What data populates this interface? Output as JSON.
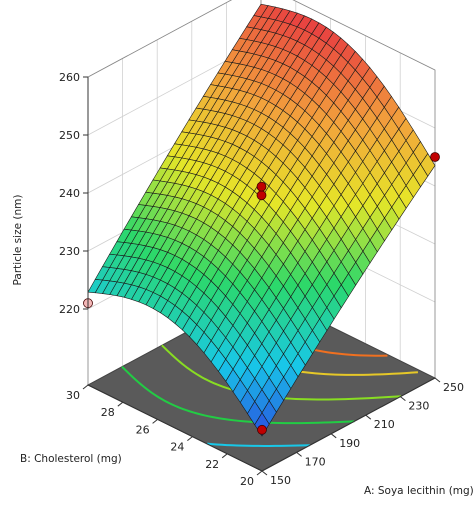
{
  "chart_data": {
    "type": "surface3d",
    "xlabel": "A: Soya lecithin (mg)",
    "ylabel": "B: Cholesterol (mg)",
    "zlabel": "Particle size (nm)",
    "xlim": [
      150,
      250
    ],
    "ylim": [
      20,
      30
    ],
    "zlim": [
      220,
      260
    ],
    "x_ticks": [
      "150",
      "170",
      "190",
      "210",
      "230",
      "250"
    ],
    "y_ticks": [
      "20",
      "22",
      "24",
      "26",
      "28",
      "30"
    ],
    "z_ticks": [
      "220",
      "230",
      "240",
      "250",
      "260"
    ],
    "surface": {
      "x_at_corners": [
        150,
        250,
        150,
        250
      ],
      "y_at_corners": [
        20,
        20,
        30,
        30
      ],
      "z_at_corners": [
        214,
        244,
        224,
        257
      ],
      "colormap": [
        "#2b3fe0",
        "#18c8e8",
        "#2cd86a",
        "#e6e628",
        "#f2a23c",
        "#e84040"
      ]
    },
    "floor_contour_colors": [
      "#18c8e8",
      "#22cc44",
      "#88dd22",
      "#e6c828",
      "#f07020"
    ],
    "points": [
      {
        "x": 150,
        "y": 20,
        "z": 214,
        "color": "#c00000"
      },
      {
        "x": 250,
        "y": 20,
        "z": 245,
        "color": "#c00000"
      },
      {
        "x": 150,
        "y": 30,
        "z": 221,
        "color": "#f4b8b8"
      },
      {
        "x": 200,
        "y": 25,
        "z": 239,
        "color": "#c00000"
      },
      {
        "x": 200,
        "y": 25,
        "z": 240.5,
        "color": "#c00000"
      }
    ]
  }
}
